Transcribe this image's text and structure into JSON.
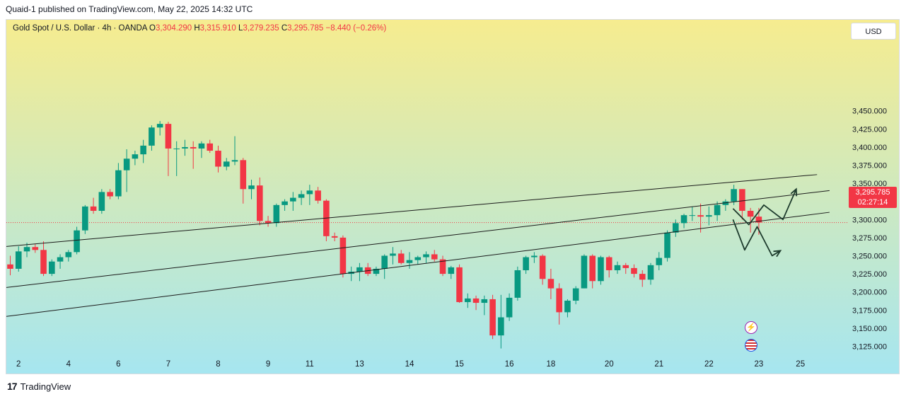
{
  "header": {
    "published": "Quaid-1 published on TradingView.com, May 22, 2025 14:32 UTC"
  },
  "legend": {
    "symbol": "Gold Spot / U.S. Dollar · 4h · OANDA",
    "o_label": "O",
    "o": "3,304.290",
    "h_label": "H",
    "h": "3,315.910",
    "l_label": "L",
    "l": "3,279.235",
    "c_label": "C",
    "c": "3,295.785",
    "change": "−8.440 (−0.26%)"
  },
  "currency_button": "USD",
  "price_tag": {
    "price": "3,295.785",
    "countdown": "02:27:14"
  },
  "brand": {
    "logo": "17",
    "name": "TradingView"
  },
  "icons": [
    "lightning-icon",
    "us-flag-icon"
  ],
  "colors": {
    "up": "#089981",
    "down": "#f23645",
    "bg_top": "#f6ec8f",
    "bg_bottom": "#a6e6f0"
  },
  "chart_data": {
    "type": "candlestick",
    "title": "Gold Spot / U.S. Dollar · 4h · OANDA",
    "y_ticks": [
      3125,
      3150,
      3175,
      3200,
      3225,
      3250,
      3275,
      3300,
      3325,
      3350,
      3375,
      3400,
      3425,
      3450
    ],
    "ylim": [
      3112,
      3472
    ],
    "x_ticks": [
      {
        "label": "2",
        "bar": 1
      },
      {
        "label": "4",
        "bar": 7
      },
      {
        "label": "6",
        "bar": 13
      },
      {
        "label": "7",
        "bar": 19
      },
      {
        "label": "8",
        "bar": 25
      },
      {
        "label": "9",
        "bar": 31
      },
      {
        "label": "11",
        "bar": 36
      },
      {
        "label": "13",
        "bar": 42
      },
      {
        "label": "14",
        "bar": 48
      },
      {
        "label": "15",
        "bar": 54
      },
      {
        "label": "16",
        "bar": 60
      },
      {
        "label": "18",
        "bar": 65
      },
      {
        "label": "20",
        "bar": 72
      },
      {
        "label": "21",
        "bar": 78
      },
      {
        "label": "22",
        "bar": 84
      },
      {
        "label": "23",
        "bar": 90
      },
      {
        "label": "25",
        "bar": 95
      }
    ],
    "candles": [
      [
        3238,
        3250,
        3223,
        3232
      ],
      [
        3232,
        3263,
        3228,
        3256
      ],
      [
        3256,
        3268,
        3248,
        3262
      ],
      [
        3262,
        3266,
        3254,
        3258
      ],
      [
        3258,
        3270,
        3222,
        3225
      ],
      [
        3225,
        3245,
        3222,
        3242
      ],
      [
        3242,
        3252,
        3232,
        3248
      ],
      [
        3248,
        3258,
        3242,
        3255
      ],
      [
        3255,
        3290,
        3252,
        3285
      ],
      [
        3285,
        3320,
        3280,
        3318
      ],
      [
        3318,
        3330,
        3308,
        3312
      ],
      [
        3312,
        3342,
        3308,
        3338
      ],
      [
        3338,
        3342,
        3328,
        3332
      ],
      [
        3332,
        3378,
        3328,
        3368
      ],
      [
        3368,
        3397,
        3338,
        3384
      ],
      [
        3384,
        3395,
        3375,
        3390
      ],
      [
        3390,
        3410,
        3378,
        3402
      ],
      [
        3402,
        3430,
        3395,
        3427
      ],
      [
        3427,
        3436,
        3416,
        3432
      ],
      [
        3432,
        3435,
        3360,
        3398
      ],
      [
        3398,
        3408,
        3360,
        3398
      ],
      [
        3398,
        3410,
        3388,
        3400
      ],
      [
        3400,
        3408,
        3370,
        3398
      ],
      [
        3398,
        3408,
        3385,
        3405
      ],
      [
        3405,
        3410,
        3392,
        3395
      ],
      [
        3395,
        3402,
        3365,
        3373
      ],
      [
        3373,
        3385,
        3368,
        3380
      ],
      [
        3380,
        3415,
        3375,
        3382
      ],
      [
        3382,
        3385,
        3322,
        3342
      ],
      [
        3342,
        3355,
        3328,
        3347
      ],
      [
        3347,
        3358,
        3292,
        3298
      ],
      [
        3298,
        3305,
        3290,
        3295
      ],
      [
        3295,
        3322,
        3290,
        3320
      ],
      [
        3320,
        3328,
        3312,
        3325
      ],
      [
        3325,
        3338,
        3312,
        3330
      ],
      [
        3330,
        3340,
        3320,
        3335
      ],
      [
        3335,
        3348,
        3320,
        3340
      ],
      [
        3340,
        3345,
        3322,
        3326
      ],
      [
        3326,
        3328,
        3270,
        3277
      ],
      [
        3277,
        3282,
        3270,
        3275
      ],
      [
        3275,
        3278,
        3220,
        3225
      ],
      [
        3225,
        3235,
        3215,
        3228
      ],
      [
        3228,
        3240,
        3215,
        3234
      ],
      [
        3234,
        3240,
        3222,
        3225
      ],
      [
        3225,
        3235,
        3222,
        3232
      ],
      [
        3232,
        3252,
        3218,
        3250
      ],
      [
        3250,
        3262,
        3238,
        3253
      ],
      [
        3253,
        3258,
        3238,
        3240
      ],
      [
        3240,
        3255,
        3232,
        3244
      ],
      [
        3244,
        3250,
        3238,
        3248
      ],
      [
        3248,
        3256,
        3240,
        3252
      ],
      [
        3252,
        3258,
        3242,
        3245
      ],
      [
        3245,
        3250,
        3222,
        3225
      ],
      [
        3225,
        3236,
        3218,
        3234
      ],
      [
        3234,
        3238,
        3185,
        3186
      ],
      [
        3186,
        3198,
        3178,
        3191
      ],
      [
        3191,
        3195,
        3175,
        3185
      ],
      [
        3185,
        3195,
        3168,
        3190
      ],
      [
        3190,
        3196,
        3135,
        3140
      ],
      [
        3140,
        3196,
        3122,
        3165
      ],
      [
        3165,
        3198,
        3160,
        3192
      ],
      [
        3192,
        3235,
        3188,
        3230
      ],
      [
        3230,
        3250,
        3225,
        3248
      ],
      [
        3248,
        3255,
        3240,
        3250
      ],
      [
        3250,
        3252,
        3210,
        3218
      ],
      [
        3218,
        3232,
        3190,
        3205
      ],
      [
        3205,
        3212,
        3155,
        3172
      ],
      [
        3172,
        3190,
        3165,
        3188
      ],
      [
        3188,
        3208,
        3183,
        3205
      ],
      [
        3205,
        3252,
        3205,
        3250
      ],
      [
        3250,
        3252,
        3205,
        3215
      ],
      [
        3215,
        3250,
        3210,
        3248
      ],
      [
        3248,
        3250,
        3220,
        3230
      ],
      [
        3230,
        3242,
        3225,
        3237
      ],
      [
        3237,
        3240,
        3225,
        3233
      ],
      [
        3233,
        3238,
        3220,
        3225
      ],
      [
        3225,
        3230,
        3207,
        3217
      ],
      [
        3217,
        3240,
        3210,
        3237
      ],
      [
        3237,
        3255,
        3230,
        3247
      ],
      [
        3247,
        3285,
        3242,
        3282
      ],
      [
        3282,
        3300,
        3276,
        3295
      ],
      [
        3295,
        3308,
        3288,
        3306
      ],
      [
        3306,
        3318,
        3298,
        3306
      ],
      [
        3306,
        3322,
        3282,
        3304
      ],
      [
        3304,
        3318,
        3292,
        3306
      ],
      [
        3306,
        3325,
        3298,
        3320
      ],
      [
        3320,
        3328,
        3312,
        3325
      ],
      [
        3325,
        3348,
        3320,
        3342
      ],
      [
        3342,
        3342,
        3300,
        3312
      ],
      [
        3312,
        3316,
        3282,
        3304
      ],
      [
        3304,
        3316,
        3279,
        3296
      ]
    ],
    "trendlines": [
      {
        "from": {
          "bar": -1.3,
          "price": 3262
        },
        "to": {
          "bar": 97.0,
          "price": 3362
        }
      },
      {
        "from": {
          "bar": -1.3,
          "price": 3205
        },
        "to": {
          "bar": 98.5,
          "price": 3340
        }
      },
      {
        "from": {
          "bar": -1.3,
          "price": 3165
        },
        "to": {
          "bar": 98.5,
          "price": 3310
        }
      }
    ],
    "projection_up": [
      {
        "bar": 86.9,
        "price": 3315
      },
      {
        "bar": 88.8,
        "price": 3293
      },
      {
        "bar": 90.6,
        "price": 3320
      },
      {
        "bar": 92.9,
        "price": 3300
      },
      {
        "bar": 94.5,
        "price": 3342
      }
    ],
    "projection_down": [
      {
        "bar": 86.9,
        "price": 3300
      },
      {
        "bar": 88.3,
        "price": 3258
      },
      {
        "bar": 89.8,
        "price": 3290
      },
      {
        "bar": 91.6,
        "price": 3250
      },
      {
        "bar": 92.6,
        "price": 3257
      }
    ],
    "last_price": 3295.785
  }
}
